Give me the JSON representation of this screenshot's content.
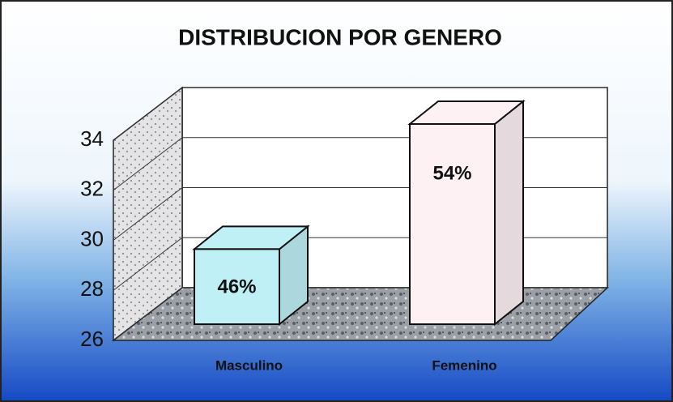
{
  "chart_data": {
    "type": "bar3d",
    "title": "DISTRIBUCION POR GENERO",
    "categories": [
      "Masculino",
      "Femenino"
    ],
    "values": [
      29,
      34
    ],
    "value_labels": [
      "46%",
      "54%"
    ],
    "colors": [
      "#bff0f6",
      "#fdf1f4"
    ],
    "ylim": [
      26,
      34
    ],
    "yticks": [
      26,
      28,
      30,
      32,
      34
    ],
    "grid": true
  }
}
